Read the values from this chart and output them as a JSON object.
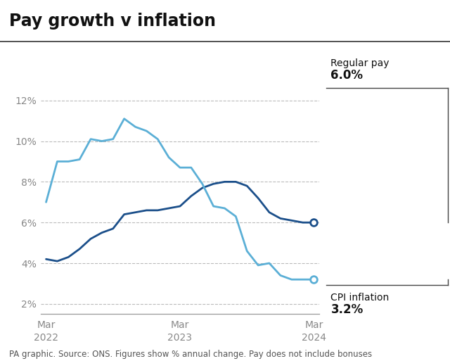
{
  "title": "Pay growth v inflation",
  "footnote": "PA graphic. Source: ONS. Figures show % annual change. Pay does not include bonuses",
  "regular_pay_label": "Regular pay",
  "regular_pay_value": "6.0%",
  "cpi_label": "CPI inflation",
  "cpi_value": "3.2%",
  "background_color": "#ffffff",
  "regular_pay_color": "#1b4f8a",
  "cpi_color": "#5bafd6",
  "ylim": [
    1.5,
    12.5
  ],
  "yticks": [
    2,
    4,
    6,
    8,
    10,
    12
  ],
  "regular_pay_x": [
    0,
    1,
    2,
    3,
    4,
    5,
    6,
    7,
    8,
    9,
    10,
    11,
    12,
    13,
    14,
    15,
    16,
    17,
    18,
    19,
    20,
    21,
    22,
    23,
    24
  ],
  "regular_pay_y": [
    4.2,
    4.1,
    4.3,
    4.7,
    5.2,
    5.5,
    5.7,
    6.4,
    6.5,
    6.6,
    6.6,
    6.7,
    6.8,
    7.3,
    7.7,
    7.9,
    8.0,
    8.0,
    7.8,
    7.2,
    6.5,
    6.2,
    6.1,
    6.0,
    6.0
  ],
  "cpi_x": [
    0,
    1,
    2,
    3,
    4,
    5,
    6,
    7,
    8,
    9,
    10,
    11,
    12,
    13,
    14,
    15,
    16,
    17,
    18,
    19,
    20,
    21,
    22,
    23,
    24
  ],
  "cpi_y": [
    7.0,
    9.0,
    9.0,
    9.1,
    10.1,
    10.0,
    10.1,
    11.1,
    10.7,
    10.5,
    10.1,
    9.2,
    8.7,
    8.7,
    7.9,
    6.8,
    6.7,
    6.3,
    4.6,
    3.9,
    4.0,
    3.4,
    3.2,
    3.2,
    3.2
  ],
  "x_tick_positions": [
    0,
    12,
    24
  ],
  "x_tick_labels": [
    "Mar\n2022",
    "Mar\n2023",
    "Mar\n2024"
  ],
  "grid_color": "#bbbbbb",
  "title_fontsize": 17,
  "tick_fontsize": 10,
  "footnote_fontsize": 8.5,
  "annot_fontsize": 10,
  "annot_value_fontsize": 12,
  "title_color": "#111111",
  "tick_color": "#888888",
  "footnote_color": "#555555",
  "annot_line_color": "#444444",
  "xlim": [
    -0.5,
    24.5
  ]
}
